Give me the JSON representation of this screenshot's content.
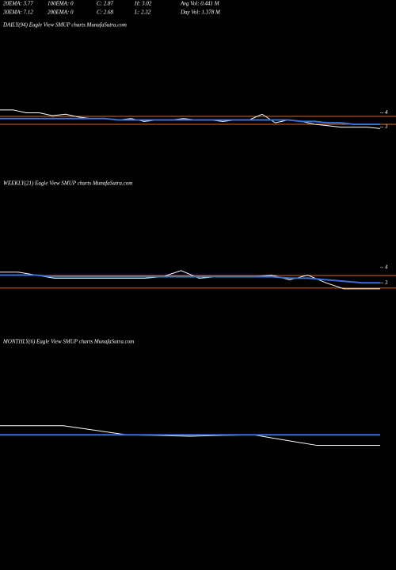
{
  "header": [
    [
      "20EMA: 3.77",
      "100EMA: 0",
      "C: 2.87",
      "H: 3.02",
      "Avg Vol: 0.441 M"
    ],
    [
      "30EMA: 7.12",
      "200EMA: 0",
      "C: 2.68",
      "L: 2.32",
      "Day Vol: 1.378 M"
    ]
  ],
  "chart_data": [
    {
      "type": "line",
      "title": "DAILY(94) Eagle  View  SMUP charts MunafaSutra.com",
      "ylim": [
        0,
        10.2
      ],
      "yticks": [
        4,
        3
      ],
      "series": [
        {
          "color": "#ffffff",
          "values": [
            4.2,
            4.2,
            4.0,
            4.0,
            3.8,
            3.9,
            3.7,
            3.6,
            3.6,
            3.5,
            3.6,
            3.4,
            3.5,
            3.5,
            3.6,
            3.5,
            3.5,
            3.4,
            3.5,
            3.5,
            3.9,
            3.3,
            3.5,
            3.4,
            3.2,
            3.1,
            3.0,
            3.0,
            3.0,
            2.9
          ]
        },
        {
          "color": "#3a6fd8",
          "values": [
            3.6,
            3.6,
            3.6,
            3.6,
            3.6,
            3.6,
            3.6,
            3.6,
            3.6,
            3.5,
            3.5,
            3.5,
            3.5,
            3.5,
            3.5,
            3.5,
            3.5,
            3.5,
            3.5,
            3.5,
            3.5,
            3.5,
            3.5,
            3.4,
            3.4,
            3.3,
            3.3,
            3.2,
            3.2,
            3.2
          ]
        }
      ],
      "hlines": [
        3.75,
        3.2
      ],
      "hline_color": "#d2691e"
    },
    {
      "type": "line",
      "title": "WEEKLY(21) Eagle  View  SMUP charts MunafaSutra.com",
      "ylim": [
        0,
        9.6
      ],
      "yticks": [
        4,
        3
      ],
      "series": [
        {
          "color": "#ffffff",
          "values": [
            3.7,
            3.7,
            3.5,
            3.3,
            3.3,
            3.3,
            3.3,
            3.3,
            3.3,
            3.4,
            3.8,
            3.3,
            3.4,
            3.4,
            3.4,
            3.5,
            3.2,
            3.5,
            3.0,
            2.6,
            2.6,
            2.6
          ]
        },
        {
          "color": "#3a6fd8",
          "values": [
            3.5,
            3.5,
            3.5,
            3.4,
            3.4,
            3.4,
            3.4,
            3.4,
            3.4,
            3.4,
            3.4,
            3.4,
            3.4,
            3.4,
            3.4,
            3.4,
            3.3,
            3.3,
            3.2,
            3.1,
            3.0,
            3.0
          ]
        }
      ],
      "hlines": [
        3.48,
        2.65
      ],
      "hline_color": "#d2691e"
    },
    {
      "type": "line",
      "title": "MONTHLY(6) Eagle  View  SMUP charts MunafaSutra.com",
      "ylim": [
        0,
        8.6
      ],
      "yticks": [],
      "series": [
        {
          "color": "#ffffff",
          "values": [
            5.35,
            5.35,
            5.0,
            4.95,
            5.0,
            4.6,
            4.6
          ]
        },
        {
          "color": "#3a6fd8",
          "values": [
            5.0,
            5.0,
            5.0,
            5.0,
            5.0,
            5.0,
            5.0
          ]
        }
      ],
      "hlines": [],
      "hline_color": "#d2691e"
    }
  ]
}
